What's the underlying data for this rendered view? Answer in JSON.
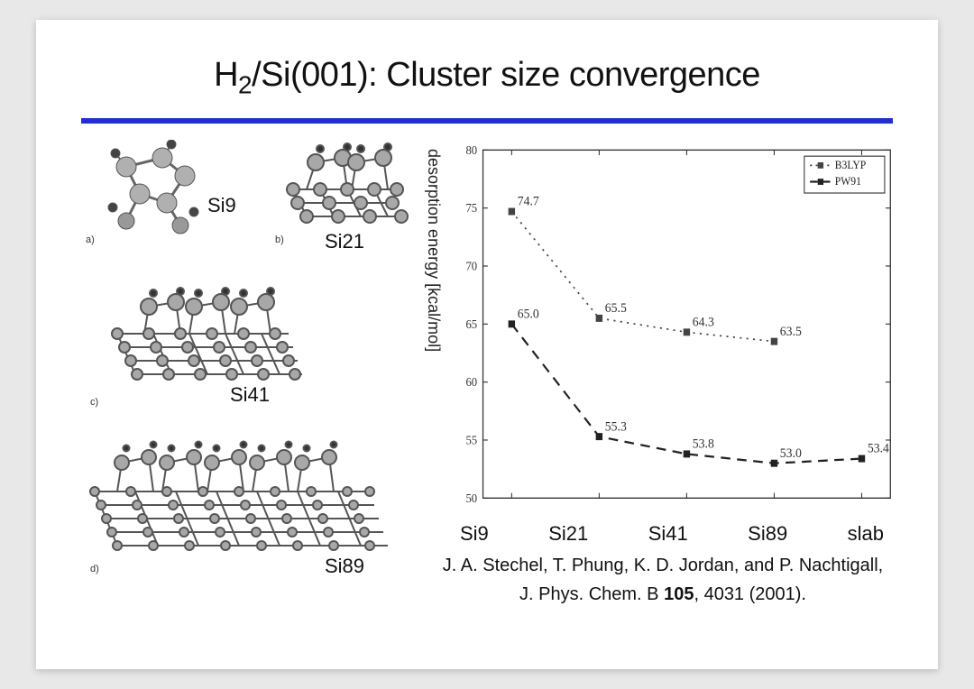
{
  "title_prefix": "H",
  "title_sub": "2",
  "title_rest": "/Si(001): Cluster size convergence",
  "hr_color": "#1e2fd8",
  "clusters": {
    "a": {
      "label": "Si9",
      "letter": "a)"
    },
    "b": {
      "label": "Si21",
      "letter": "b)"
    },
    "c": {
      "label": "Si41",
      "letter": "c)"
    },
    "d": {
      "label": "Si89",
      "letter": "d)"
    }
  },
  "chart": {
    "type": "line",
    "ylabel": "desorption energy [kcal/mol]",
    "ylim": [
      50,
      80
    ],
    "ytick_step": 5,
    "categories": [
      "Si9",
      "Si21",
      "Si41",
      "Si89",
      "slab"
    ],
    "x_positions": [
      0,
      1,
      2,
      3,
      4
    ],
    "series": [
      {
        "name": "B3LYP",
        "style": "dotted",
        "marker": "square-filled",
        "color": "#444444",
        "line_width": 1.5,
        "values": [
          74.7,
          65.5,
          64.3,
          63.5,
          null
        ],
        "value_labels": [
          "74.7",
          "65.5",
          "64.3",
          "63.5",
          ""
        ]
      },
      {
        "name": "PW91",
        "style": "dashed",
        "marker": "square-filled",
        "color": "#222222",
        "line_width": 2,
        "values": [
          65.0,
          55.3,
          53.8,
          53.0,
          53.4
        ],
        "value_labels": [
          "65.0",
          "55.3",
          "53.8",
          "53.0",
          "53.4"
        ]
      }
    ],
    "legend_position": "top-right",
    "background_color": "#ffffff",
    "axis_color": "#333333",
    "tick_fontsize": 12,
    "label_fontsize": 13
  },
  "citation_line1": "J. A. Stechel, T. Phung, K. D. Jordan, and P. Nachtigall,",
  "citation_journal": "J. Phys. Chem. B ",
  "citation_vol": "105",
  "citation_rest": ", 4031 (2001)."
}
